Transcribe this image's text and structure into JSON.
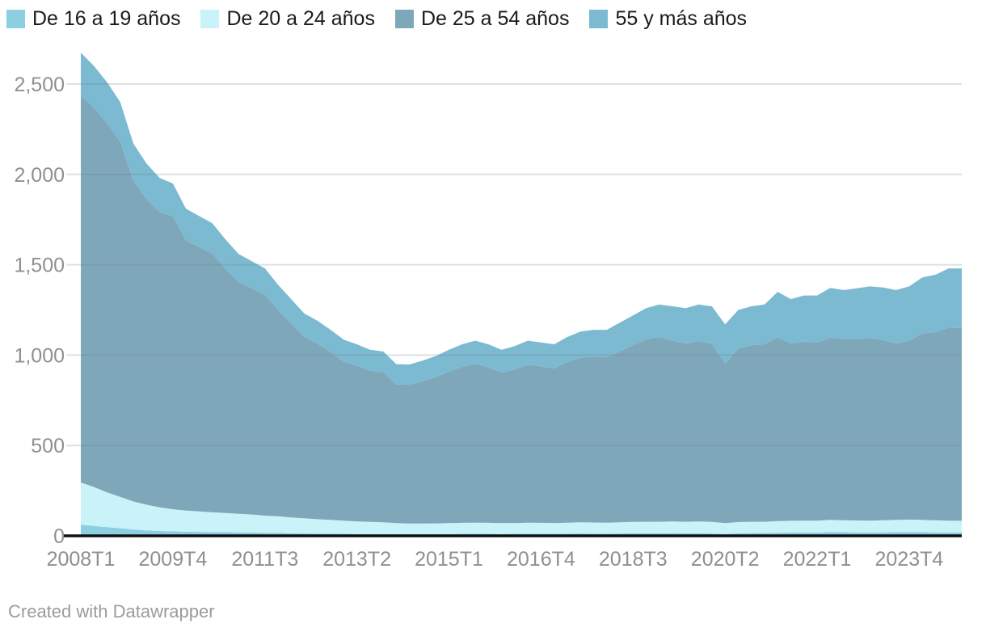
{
  "legend": {
    "items": [
      {
        "label": "De 16 a 19 años",
        "color": "#8ccfe3"
      },
      {
        "label": "De 20 a 24 años",
        "color": "#c9f2f9"
      },
      {
        "label": "De 25 a 54 años",
        "color": "#7fa7ba"
      },
      {
        "label": "55 y más años",
        "color": "#7cbad1"
      }
    ]
  },
  "footer": {
    "text": "Created with Datawrapper"
  },
  "colors": {
    "axis_label": "#8d9093",
    "legend_text": "#1a1a1a",
    "baseline": "#111111",
    "gridline": "#6b7b85",
    "background": "#ffffff"
  },
  "chart_data": {
    "type": "area",
    "stacked": true,
    "title": "",
    "xlabel": "",
    "ylabel": "",
    "grid": true,
    "legend_position": "top",
    "ylim": [
      0,
      2700
    ],
    "y_ticks": [
      0,
      500,
      1000,
      1500,
      2000,
      2500
    ],
    "y_tick_labels": [
      "0",
      "500",
      "1,000",
      "1,500",
      "2,000",
      "2,500"
    ],
    "x_tick_labels": [
      "2008T1",
      "2009T4",
      "2011T3",
      "2013T2",
      "2015T1",
      "2016T4",
      "2018T3",
      "2020T2",
      "2022T1",
      "2023T4"
    ],
    "x_tick_every_quarters": 7,
    "x_labels": [
      "2008T1",
      "2008T2",
      "2008T3",
      "2008T4",
      "2009T1",
      "2009T2",
      "2009T3",
      "2009T4",
      "2010T1",
      "2010T2",
      "2010T3",
      "2010T4",
      "2011T1",
      "2011T2",
      "2011T3",
      "2011T4",
      "2012T1",
      "2012T2",
      "2012T3",
      "2012T4",
      "2013T1",
      "2013T2",
      "2013T3",
      "2013T4",
      "2014T1",
      "2014T2",
      "2014T3",
      "2014T4",
      "2015T1",
      "2015T2",
      "2015T3",
      "2015T4",
      "2016T1",
      "2016T2",
      "2016T3",
      "2016T4",
      "2017T1",
      "2017T2",
      "2017T3",
      "2017T4",
      "2018T1",
      "2018T2",
      "2018T3",
      "2018T4",
      "2019T1",
      "2019T2",
      "2019T3",
      "2019T4",
      "2020T1",
      "2020T2",
      "2020T3",
      "2020T4",
      "2021T1",
      "2021T2",
      "2021T3",
      "2021T4",
      "2022T1",
      "2022T2",
      "2022T3",
      "2022T4",
      "2023T1",
      "2023T2",
      "2023T3",
      "2023T4",
      "2024T1",
      "2024T2",
      "2024T3",
      "2024T4"
    ],
    "series": [
      {
        "name": "De 16 a 19 años",
        "color": "#8ccfe3",
        "values": [
          62,
          55,
          48,
          42,
          35,
          30,
          27,
          25,
          23,
          22,
          21,
          20,
          19,
          18,
          17,
          16,
          14,
          13,
          12,
          12,
          11,
          10,
          10,
          10,
          9,
          9,
          10,
          10,
          10,
          11,
          11,
          11,
          10,
          11,
          12,
          11,
          11,
          12,
          13,
          12,
          12,
          13,
          14,
          14,
          14,
          15,
          14,
          14,
          13,
          10,
          14,
          15,
          15,
          17,
          18,
          18,
          18,
          22,
          20,
          19,
          18,
          19,
          20,
          21,
          20,
          19,
          18,
          18
        ]
      },
      {
        "name": "De 20 a 24 años",
        "color": "#c9f2f9",
        "values": [
          233,
          215,
          192,
          173,
          155,
          142,
          131,
          122,
          117,
          113,
          109,
          106,
          103,
          100,
          95,
          92,
          88,
          84,
          80,
          76,
          73,
          70,
          67,
          65,
          61,
          59,
          58,
          59,
          60,
          61,
          62,
          61,
          60,
          60,
          61,
          61,
          60,
          61,
          62,
          62,
          61,
          62,
          63,
          64,
          64,
          64,
          64,
          65,
          64,
          60,
          62,
          63,
          63,
          65,
          65,
          66,
          66,
          66,
          66,
          66,
          66,
          67,
          68,
          69,
          68,
          67,
          66,
          65
        ]
      },
      {
        "name": "De 25 a 54 años",
        "color": "#7fa7ba",
        "values": [
          2142,
          2098,
          2044,
          1967,
          1775,
          1692,
          1634,
          1621,
          1494,
          1463,
          1432,
          1351,
          1282,
          1251,
          1222,
          1142,
          1074,
          1003,
          971,
          928,
          880,
          861,
          836,
          830,
          767,
          768,
          788,
          809,
          839,
          863,
          879,
          861,
          833,
          849,
          874,
          866,
          855,
          888,
          911,
          918,
          915,
          947,
          978,
          1010,
          1022,
          1002,
          986,
          999,
          985,
          884,
          960,
          976,
          983,
          1016,
          982,
          991,
          986,
          1009,
          1002,
          1005,
          1011,
          997,
          976,
          990,
          1032,
          1041,
          1068,
          1066
        ]
      },
      {
        "name": "55 y más años",
        "color": "#7cbad1",
        "values": [
          237,
          232,
          226,
          218,
          205,
          196,
          188,
          182,
          176,
          172,
          168,
          163,
          156,
          151,
          146,
          140,
          134,
          130,
          127,
          124,
          121,
          119,
          117,
          115,
          113,
          112,
          114,
          117,
          121,
          125,
          128,
          127,
          127,
          130,
          133,
          132,
          134,
          139,
          144,
          148,
          152,
          158,
          165,
          172,
          180,
          189,
          196,
          202,
          208,
          216,
          214,
          216,
          219,
          252,
          245,
          255,
          260,
          275,
          272,
          280,
          285,
          292,
          296,
          300,
          310,
          318,
          328,
          331
        ]
      }
    ]
  }
}
